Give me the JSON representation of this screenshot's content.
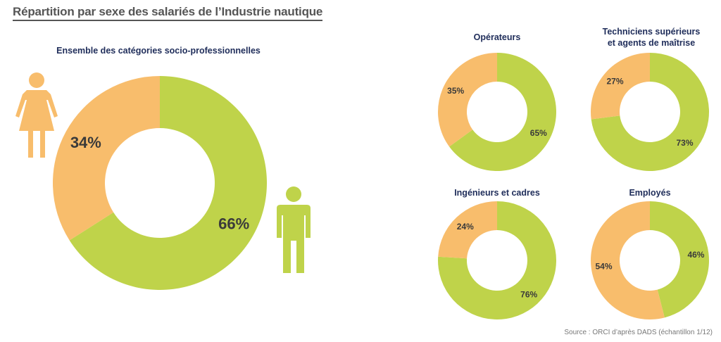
{
  "page": {
    "title": "Répartition par sexe des salariés de l’Industrie nautique",
    "source": "Source : ORCI d’après DADS (échantillon 1/12)"
  },
  "colors": {
    "men": "#bfd34a",
    "women": "#f8bd6c"
  },
  "icons": {
    "women": "woman-figure-icon",
    "men": "man-figure-icon"
  },
  "chart_data": [
    {
      "type": "pie",
      "title": "Ensemble des catégories socio-professionnelles",
      "slices": [
        {
          "label": "66%",
          "value": 66,
          "color": "#bfd34a"
        },
        {
          "label": "34%",
          "value": 34,
          "color": "#f8bd6c"
        }
      ]
    },
    {
      "type": "pie",
      "title": "Opérateurs",
      "slices": [
        {
          "label": "65%",
          "value": 65,
          "color": "#bfd34a"
        },
        {
          "label": "35%",
          "value": 35,
          "color": "#f8bd6c"
        }
      ]
    },
    {
      "type": "pie",
      "title": "Techniciens supérieurs\net agents de maîtrise",
      "slices": [
        {
          "label": "73%",
          "value": 73,
          "color": "#bfd34a"
        },
        {
          "label": "27%",
          "value": 27,
          "color": "#f8bd6c"
        }
      ]
    },
    {
      "type": "pie",
      "title": "Ingénieurs et cadres",
      "slices": [
        {
          "label": "76%",
          "value": 76,
          "color": "#bfd34a"
        },
        {
          "label": "24%",
          "value": 24,
          "color": "#f8bd6c"
        }
      ]
    },
    {
      "type": "pie",
      "title": "Employés",
      "slices": [
        {
          "label": "46%",
          "value": 46,
          "color": "#bfd34a"
        },
        {
          "label": "54%",
          "value": 54,
          "color": "#f8bd6c"
        }
      ]
    }
  ]
}
